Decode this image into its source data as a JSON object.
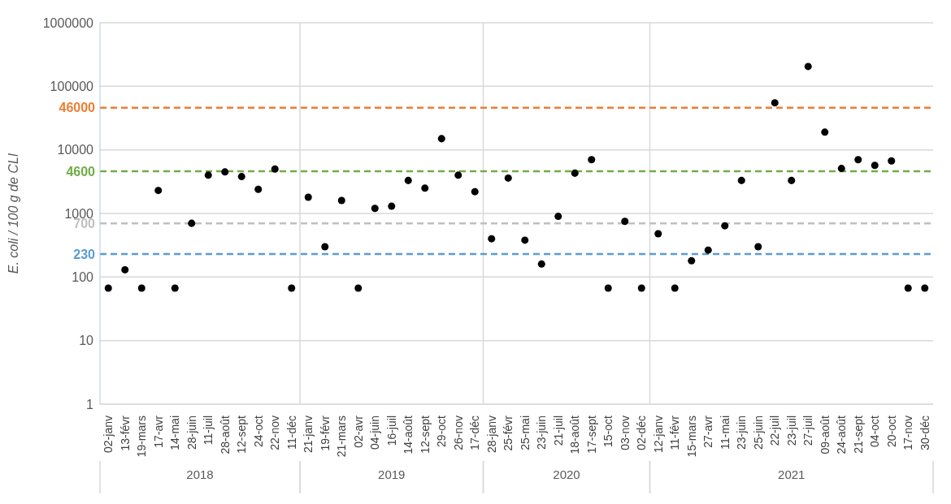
{
  "chart_data": {
    "type": "scatter",
    "ylabel": "E. coli / 100 g de CLI",
    "categories": [
      "02-janv",
      "13-févr",
      "19-mars",
      "17-avr",
      "14-mai",
      "28-juin",
      "11-juil",
      "28-août",
      "12-sept",
      "24-oct",
      "22-nov",
      "11-déc",
      "21-janv",
      "19-févr",
      "21-mars",
      "02-avr",
      "04-juin",
      "16-juil",
      "14-août",
      "12-sept",
      "29-oct",
      "26-nov",
      "17-déc",
      "28-janv",
      "25-févr",
      "25-mai",
      "23-juin",
      "21-juil",
      "18-août",
      "17-sept",
      "15-oct",
      "03-nov",
      "02-déc",
      "12-janv",
      "11-févr",
      "15-mars",
      "27-avr",
      "11-mai",
      "23-juin",
      "25-juin",
      "22-juil",
      "23-juil",
      "27-juil",
      "09-août",
      "24-août",
      "21-sept",
      "04-oct",
      "20-oct",
      "17-nov",
      "30-déc"
    ],
    "series": [
      {
        "color": "#000000",
        "values": [
          67,
          130,
          67,
          2300,
          67,
          700,
          4000,
          4500,
          3800,
          2400,
          5000,
          67,
          null,
          null,
          null,
          null,
          null,
          null,
          null,
          null,
          null,
          null,
          null,
          null,
          null,
          null,
          null,
          null,
          null,
          null,
          null,
          null,
          null,
          null,
          null,
          null,
          null,
          null,
          null,
          null,
          null,
          null,
          null,
          null,
          null,
          null,
          null,
          null,
          null,
          null
        ]
      },
      {
        "color": "#000000",
        "values": [
          null,
          null,
          null,
          null,
          null,
          null,
          null,
          null,
          null,
          null,
          null,
          null,
          1800,
          300,
          1600,
          67,
          1200,
          1300,
          3300,
          2500,
          15000,
          4000,
          2200,
          null,
          null,
          null,
          null,
          null,
          null,
          null,
          null,
          null,
          null,
          null,
          null,
          null,
          null,
          null,
          null,
          null,
          null,
          null,
          null,
          null,
          null,
          null,
          null,
          null,
          null,
          null
        ]
      },
      {
        "color": "#000000",
        "values": [
          null,
          null,
          null,
          null,
          null,
          null,
          null,
          null,
          null,
          null,
          null,
          null,
          null,
          null,
          null,
          null,
          null,
          null,
          null,
          null,
          null,
          null,
          null,
          400,
          3600,
          380,
          160,
          900,
          4300,
          7000,
          67,
          750,
          67,
          null,
          null,
          null,
          null,
          null,
          null,
          null,
          null,
          null,
          null,
          null,
          null,
          null,
          null,
          null,
          null,
          null
        ]
      },
      {
        "color": "#000000",
        "values": [
          null,
          null,
          null,
          null,
          null,
          null,
          null,
          null,
          null,
          null,
          null,
          null,
          null,
          null,
          null,
          null,
          null,
          null,
          null,
          null,
          null,
          null,
          null,
          null,
          null,
          null,
          null,
          null,
          null,
          null,
          null,
          null,
          null,
          480,
          67,
          180,
          265,
          640,
          3300,
          300,
          55000,
          3300,
          205000,
          19000,
          5100,
          7000,
          5700,
          6700,
          67,
          67
        ]
      }
    ],
    "log": "y",
    "ylim": [
      1,
      1000000
    ],
    "yticks": [
      1,
      10,
      100,
      1000,
      10000,
      100000,
      1000000
    ],
    "grid": "y",
    "marker": "circle",
    "ref_lines": [
      {
        "axis": "y",
        "value": 46000,
        "label": "46000",
        "color": "#ed7d31",
        "line_style": "dashed"
      },
      {
        "axis": "y",
        "value": 4600,
        "label": "4600",
        "color": "#70ad47",
        "line_style": "dashed"
      },
      {
        "axis": "y",
        "value": 700,
        "label": "700",
        "color": "#bfbfbf",
        "line_style": "dashed"
      },
      {
        "axis": "y",
        "value": 230,
        "label": "230",
        "color": "#5b9bd5",
        "line_style": "dashed"
      }
    ],
    "annotations": [
      "2018",
      "2019",
      "2020",
      "2021"
    ]
  }
}
